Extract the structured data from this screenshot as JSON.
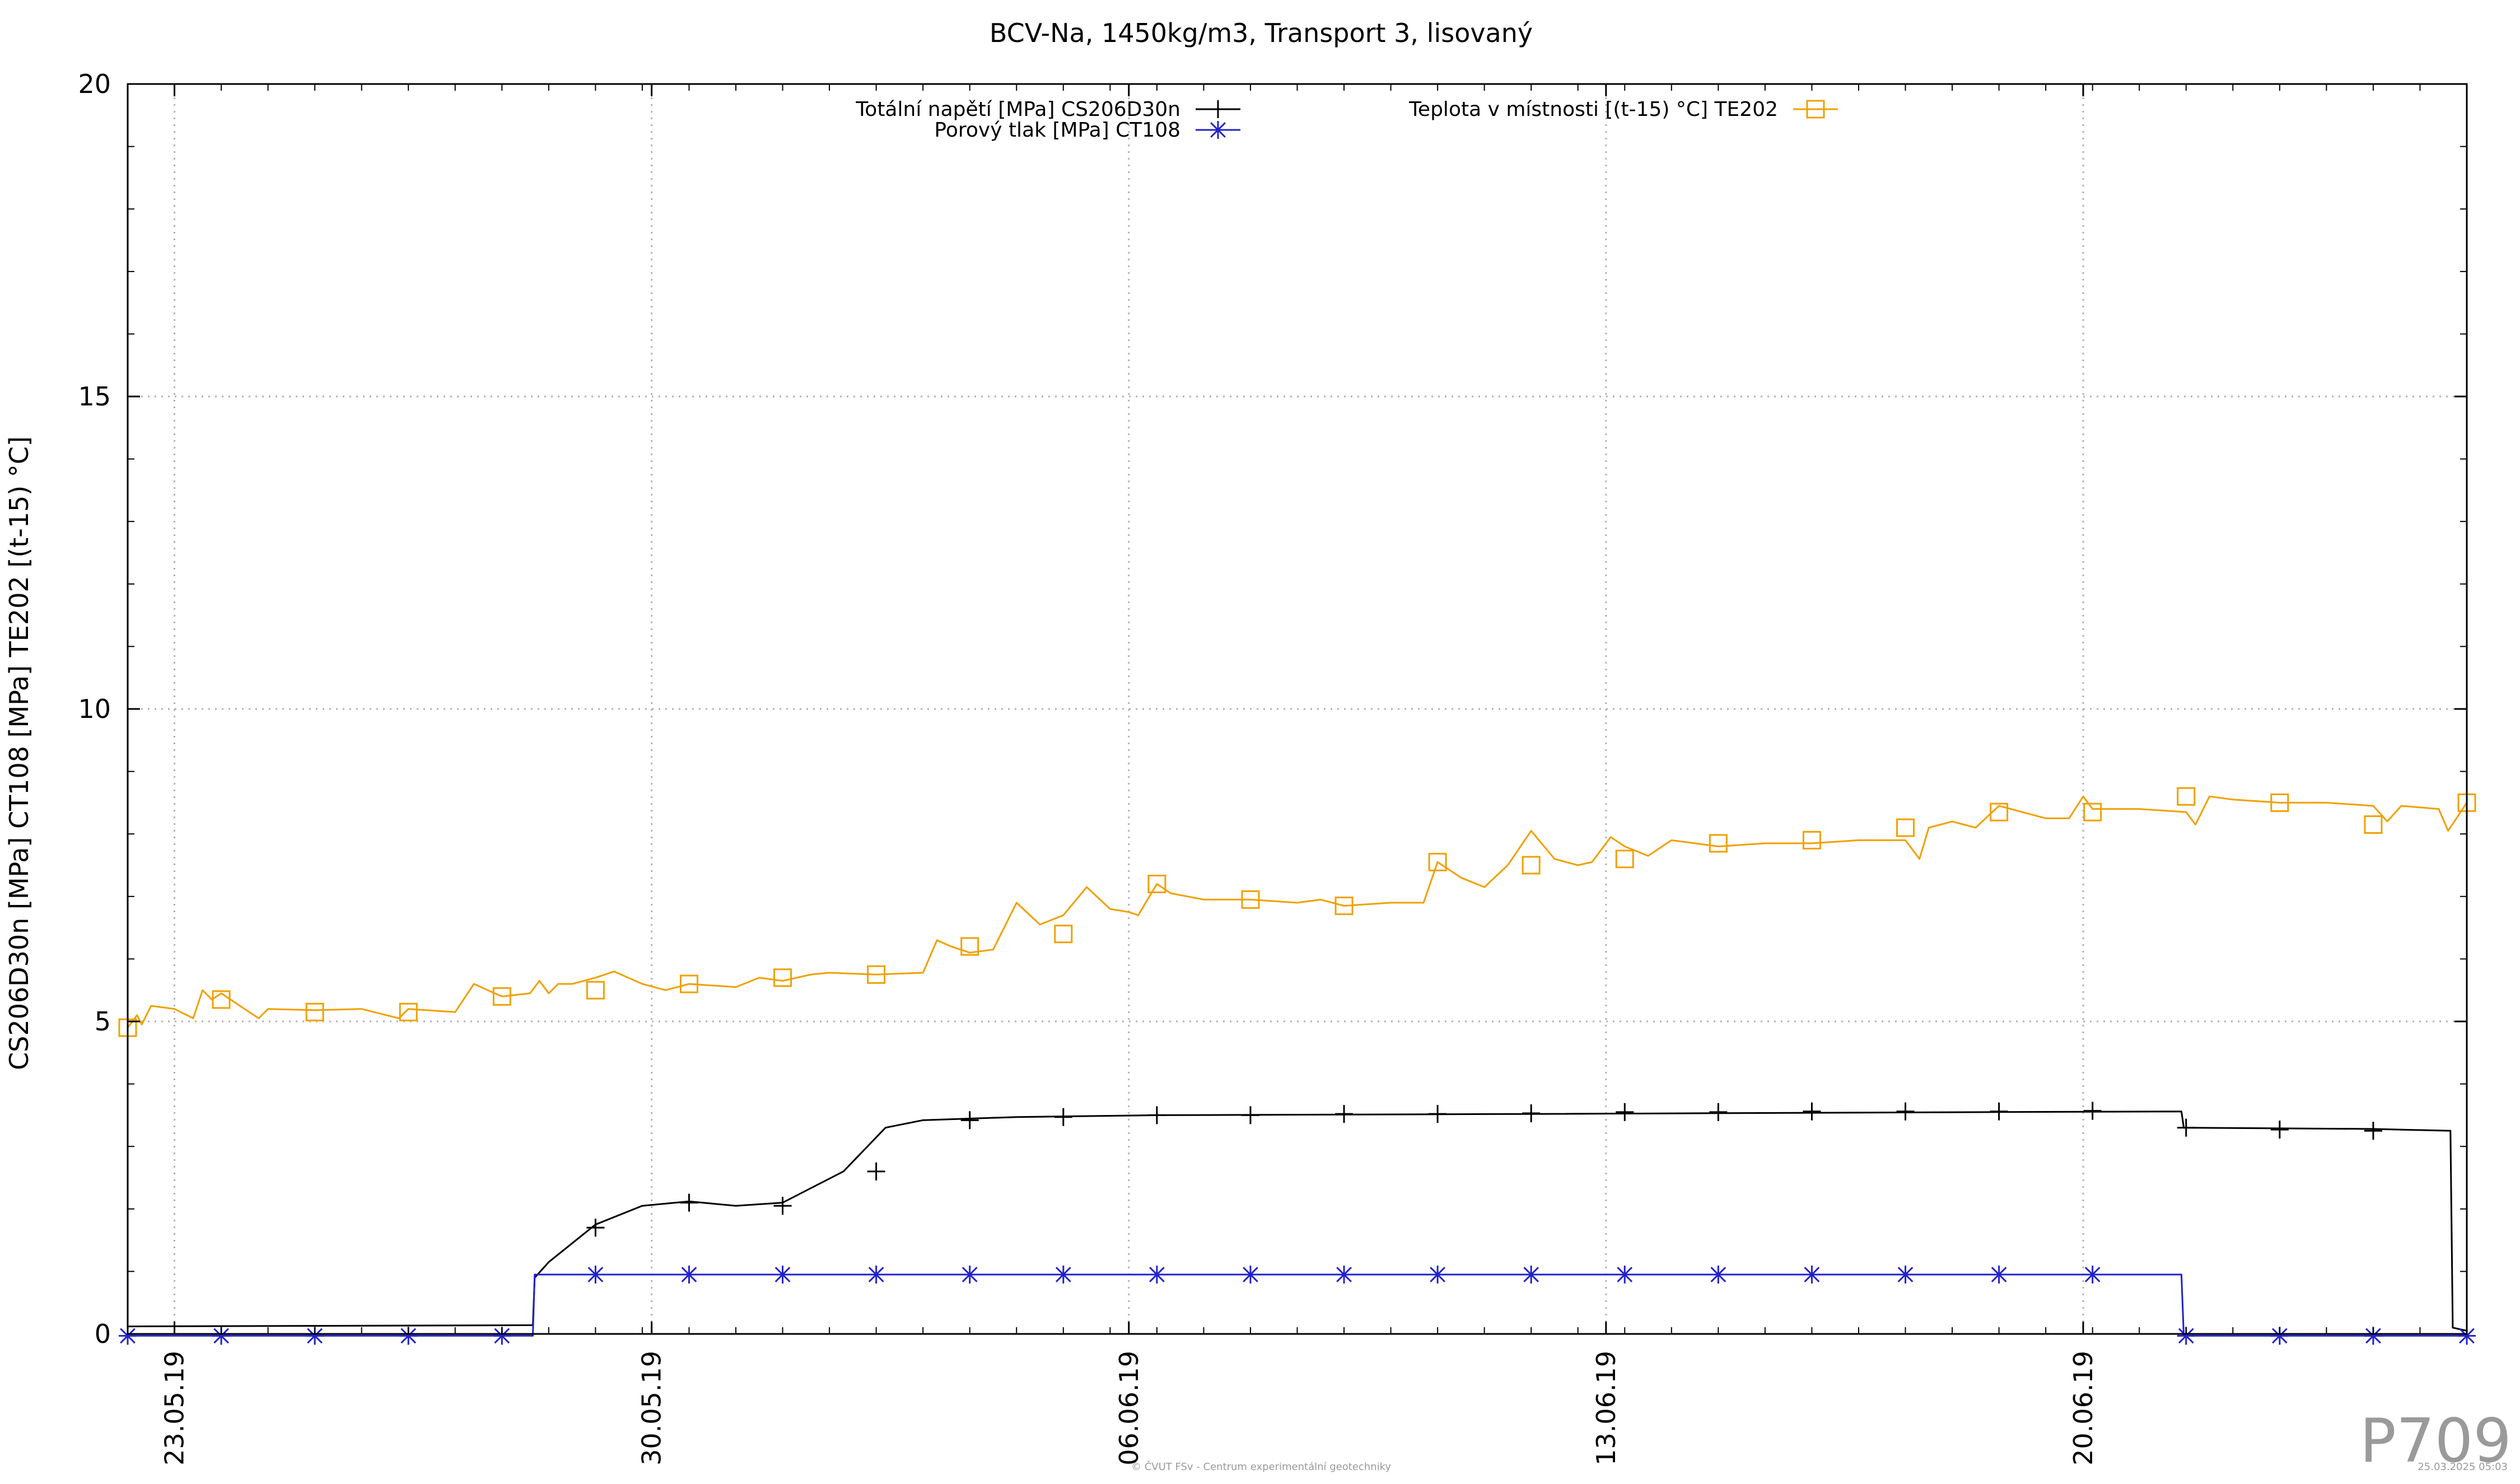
{
  "chart_data": {
    "type": "line",
    "title": "BCV-Na, 1450kg/m3, Transport 3, lisovaný",
    "ylabel": "CS206D30n [MPa] CT108 [MPa] TE202 [(t-15) °C]",
    "xlabel": "",
    "xlim": [
      0,
      50
    ],
    "ylim": [
      0,
      20
    ],
    "x_unit": "days since 22.05.19",
    "y_ticks": [
      "0",
      "5",
      "10",
      "15",
      "20"
    ],
    "x_ticks": [
      {
        "x": 1,
        "label": "23.05.19"
      },
      {
        "x": 11.2,
        "label": "30.05.19"
      },
      {
        "x": 21.4,
        "label": "06.06.19"
      },
      {
        "x": 31.6,
        "label": "13.06.19"
      },
      {
        "x": 41.8,
        "label": "20.06.19"
      }
    ],
    "grid": true,
    "legend_position": "top",
    "series": [
      {
        "name": "Totální napětí [MPa] CS206D30n",
        "color": "#000000",
        "marker": "plus",
        "line": [
          [
            0,
            0.12
          ],
          [
            8.66,
            0.14
          ],
          [
            8.7,
            0.9
          ],
          [
            9,
            1.15
          ],
          [
            10,
            1.75
          ],
          [
            11,
            2.05
          ],
          [
            12,
            2.12
          ],
          [
            13,
            2.05
          ],
          [
            14,
            2.1
          ],
          [
            15.3,
            2.6
          ],
          [
            16.2,
            3.3
          ],
          [
            17,
            3.42
          ],
          [
            19,
            3.47
          ],
          [
            22,
            3.5
          ],
          [
            30,
            3.52
          ],
          [
            40,
            3.55
          ],
          [
            43.9,
            3.56
          ],
          [
            43.95,
            3.3
          ],
          [
            48,
            3.28
          ],
          [
            49.65,
            3.25
          ],
          [
            49.7,
            0.1
          ],
          [
            50,
            0.05
          ]
        ],
        "markers": [
          [
            10,
            1.7
          ],
          [
            12,
            2.1
          ],
          [
            14,
            2.05
          ],
          [
            16,
            2.6
          ],
          [
            18,
            3.42
          ],
          [
            20,
            3.47
          ],
          [
            22,
            3.5
          ],
          [
            24,
            3.5
          ],
          [
            26,
            3.52
          ],
          [
            28,
            3.52
          ],
          [
            30,
            3.53
          ],
          [
            32,
            3.55
          ],
          [
            34,
            3.55
          ],
          [
            36,
            3.56
          ],
          [
            38,
            3.56
          ],
          [
            40,
            3.56
          ],
          [
            42,
            3.57
          ],
          [
            44,
            3.3
          ],
          [
            46,
            3.27
          ],
          [
            48,
            3.25
          ]
        ]
      },
      {
        "name": "Porový tlak [MPa] CT108",
        "color": "#2222cc",
        "marker": "star",
        "line": [
          [
            0,
            -0.03
          ],
          [
            8.66,
            -0.03
          ],
          [
            8.7,
            0.95
          ],
          [
            43.9,
            0.95
          ],
          [
            43.95,
            -0.03
          ],
          [
            50,
            -0.03
          ]
        ],
        "markers": [
          [
            0,
            -0.03
          ],
          [
            2,
            -0.03
          ],
          [
            4,
            -0.03
          ],
          [
            6,
            -0.03
          ],
          [
            8,
            -0.03
          ],
          [
            10,
            0.95
          ],
          [
            12,
            0.95
          ],
          [
            14,
            0.95
          ],
          [
            16,
            0.95
          ],
          [
            18,
            0.95
          ],
          [
            20,
            0.95
          ],
          [
            22,
            0.95
          ],
          [
            24,
            0.95
          ],
          [
            26,
            0.95
          ],
          [
            28,
            0.95
          ],
          [
            30,
            0.95
          ],
          [
            32,
            0.95
          ],
          [
            34,
            0.95
          ],
          [
            36,
            0.95
          ],
          [
            38,
            0.95
          ],
          [
            40,
            0.95
          ],
          [
            42,
            0.95
          ],
          [
            44,
            -0.03
          ],
          [
            46,
            -0.03
          ],
          [
            48,
            -0.03
          ],
          [
            50,
            -0.03
          ]
        ]
      },
      {
        "name": "Teplota v místnosti [(t-15) °C] TE202",
        "color": "#f0a000",
        "marker": "square",
        "line": [
          [
            0,
            4.9
          ],
          [
            0.2,
            5.1
          ],
          [
            0.3,
            4.95
          ],
          [
            0.5,
            5.25
          ],
          [
            1,
            5.2
          ],
          [
            1.4,
            5.05
          ],
          [
            1.6,
            5.5
          ],
          [
            1.8,
            5.35
          ],
          [
            2,
            5.45
          ],
          [
            2.5,
            5.2
          ],
          [
            2.8,
            5.05
          ],
          [
            3,
            5.2
          ],
          [
            4,
            5.18
          ],
          [
            5,
            5.2
          ],
          [
            5.8,
            5.05
          ],
          [
            6,
            5.2
          ],
          [
            7,
            5.15
          ],
          [
            7.4,
            5.6
          ],
          [
            8,
            5.4
          ],
          [
            8.6,
            5.45
          ],
          [
            8.8,
            5.65
          ],
          [
            9,
            5.45
          ],
          [
            9.2,
            5.6
          ],
          [
            9.5,
            5.6
          ],
          [
            10,
            5.7
          ],
          [
            10.4,
            5.8
          ],
          [
            11,
            5.6
          ],
          [
            11.5,
            5.5
          ],
          [
            12,
            5.6
          ],
          [
            13,
            5.55
          ],
          [
            13.5,
            5.7
          ],
          [
            14,
            5.65
          ],
          [
            14.6,
            5.75
          ],
          [
            15,
            5.78
          ],
          [
            16,
            5.75
          ],
          [
            17,
            5.78
          ],
          [
            17.3,
            6.3
          ],
          [
            17.6,
            6.2
          ],
          [
            18,
            6.1
          ],
          [
            18.5,
            6.15
          ],
          [
            19,
            6.9
          ],
          [
            19.5,
            6.55
          ],
          [
            20,
            6.7
          ],
          [
            20.5,
            7.15
          ],
          [
            21,
            6.8
          ],
          [
            21.4,
            6.75
          ],
          [
            21.6,
            6.7
          ],
          [
            22,
            7.2
          ],
          [
            22.3,
            7.05
          ],
          [
            23,
            6.95
          ],
          [
            24,
            6.95
          ],
          [
            25,
            6.9
          ],
          [
            25.5,
            6.95
          ],
          [
            26,
            6.85
          ],
          [
            27,
            6.9
          ],
          [
            27.7,
            6.9
          ],
          [
            28,
            7.55
          ],
          [
            28.5,
            7.3
          ],
          [
            29,
            7.15
          ],
          [
            29.5,
            7.5
          ],
          [
            30,
            8.05
          ],
          [
            30.5,
            7.6
          ],
          [
            31,
            7.5
          ],
          [
            31.3,
            7.55
          ],
          [
            31.7,
            7.95
          ],
          [
            32,
            7.8
          ],
          [
            32.5,
            7.65
          ],
          [
            33,
            7.9
          ],
          [
            34,
            7.8
          ],
          [
            35,
            7.85
          ],
          [
            36,
            7.85
          ],
          [
            37,
            7.9
          ],
          [
            38,
            7.9
          ],
          [
            38.3,
            7.6
          ],
          [
            38.5,
            8.1
          ],
          [
            39,
            8.2
          ],
          [
            39.5,
            8.1
          ],
          [
            40,
            8.45
          ],
          [
            41,
            8.25
          ],
          [
            41.5,
            8.25
          ],
          [
            41.8,
            8.6
          ],
          [
            42,
            8.4
          ],
          [
            43,
            8.4
          ],
          [
            44,
            8.35
          ],
          [
            44.2,
            8.15
          ],
          [
            44.5,
            8.6
          ],
          [
            45,
            8.55
          ],
          [
            46,
            8.5
          ],
          [
            47,
            8.5
          ],
          [
            48,
            8.45
          ],
          [
            48.3,
            8.2
          ],
          [
            48.6,
            8.45
          ],
          [
            49.4,
            8.4
          ],
          [
            49.6,
            8.05
          ],
          [
            50,
            8.5
          ]
        ],
        "markers": [
          [
            0,
            4.9
          ],
          [
            2,
            5.35
          ],
          [
            4,
            5.15
          ],
          [
            6,
            5.15
          ],
          [
            8,
            5.4
          ],
          [
            10,
            5.5
          ],
          [
            12,
            5.6
          ],
          [
            14,
            5.7
          ],
          [
            16,
            5.75
          ],
          [
            18,
            6.2
          ],
          [
            20,
            6.4
          ],
          [
            22,
            7.2
          ],
          [
            24,
            6.95
          ],
          [
            26,
            6.85
          ],
          [
            28,
            7.55
          ],
          [
            30,
            7.5
          ],
          [
            32,
            7.6
          ],
          [
            34,
            7.85
          ],
          [
            36,
            7.9
          ],
          [
            38,
            8.1
          ],
          [
            40,
            8.35
          ],
          [
            42,
            8.35
          ],
          [
            44,
            8.6
          ],
          [
            46,
            8.5
          ],
          [
            48,
            8.15
          ],
          [
            50,
            8.5
          ]
        ]
      }
    ]
  },
  "footer": {
    "plot_id": "P709",
    "copyright": "© ČVUT FSv - Centrum experimentální geotechniky",
    "timestamp": "25.03.2025 05:03"
  }
}
